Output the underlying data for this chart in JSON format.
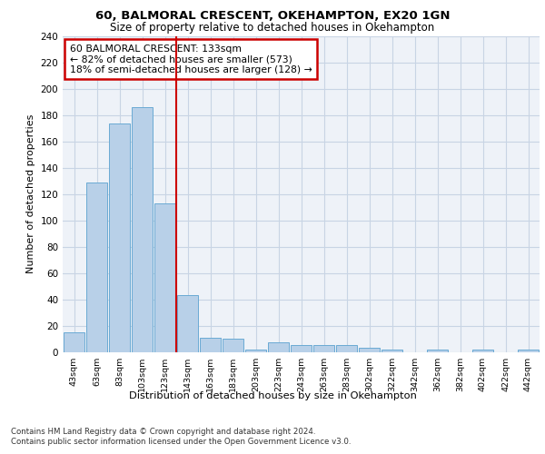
{
  "title1": "60, BALMORAL CRESCENT, OKEHAMPTON, EX20 1GN",
  "title2": "Size of property relative to detached houses in Okehampton",
  "xlabel": "Distribution of detached houses by size in Okehampton",
  "ylabel": "Number of detached properties",
  "categories": [
    "43sqm",
    "63sqm",
    "83sqm",
    "103sqm",
    "123sqm",
    "143sqm",
    "163sqm",
    "183sqm",
    "203sqm",
    "223sqm",
    "243sqm",
    "263sqm",
    "283sqm",
    "302sqm",
    "322sqm",
    "342sqm",
    "362sqm",
    "382sqm",
    "402sqm",
    "422sqm",
    "442sqm"
  ],
  "values": [
    15,
    129,
    174,
    186,
    113,
    43,
    11,
    10,
    2,
    7,
    5,
    5,
    5,
    3,
    2,
    0,
    2,
    0,
    2,
    0,
    2
  ],
  "bar_color": "#b8d0e8",
  "bar_edge_color": "#6aaad4",
  "grid_color": "#c8d4e4",
  "vline_x": 4.5,
  "vline_color": "#cc0000",
  "annotation_text": "60 BALMORAL CRESCENT: 133sqm\n← 82% of detached houses are smaller (573)\n18% of semi-detached houses are larger (128) →",
  "annotation_box_color": "#ffffff",
  "annotation_box_edge": "#cc0000",
  "ylim": [
    0,
    240
  ],
  "yticks": [
    0,
    20,
    40,
    60,
    80,
    100,
    120,
    140,
    160,
    180,
    200,
    220,
    240
  ],
  "footer1": "Contains HM Land Registry data © Crown copyright and database right 2024.",
  "footer2": "Contains public sector information licensed under the Open Government Licence v3.0.",
  "bg_color": "#ffffff",
  "plot_bg_color": "#eef2f8"
}
